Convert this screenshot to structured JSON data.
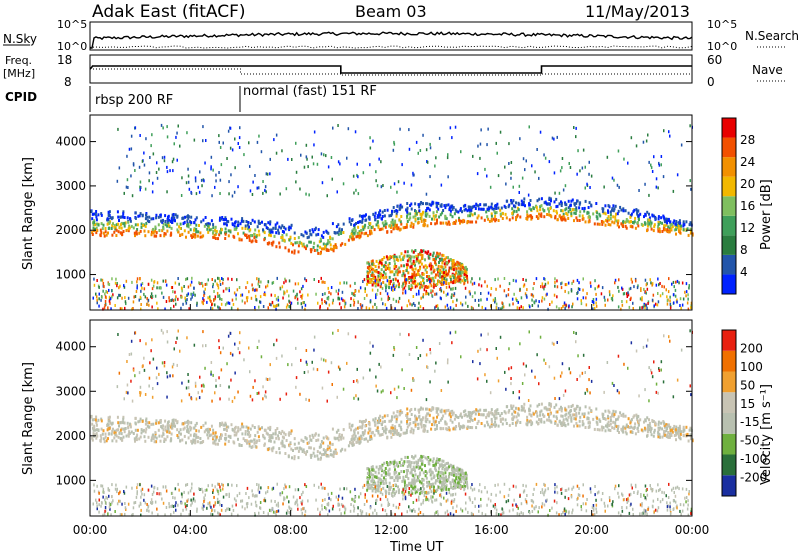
{
  "header": {
    "title": "Adak East (fitACF)",
    "beam": "Beam 03",
    "date": "11/May/2013"
  },
  "top_panels": {
    "nsky_label": "N.Sky",
    "nsearch_label": "N.Search",
    "freq_label": "Freq.",
    "freq_unit": "[MHz]",
    "nave_label": "Nave",
    "cpid_label": "CPID",
    "nsky_ticks": [
      "10^5",
      "10^0"
    ],
    "nsearch_ticks": [
      "10^5",
      "10^0"
    ],
    "freq_ticks": [
      "18",
      "8"
    ],
    "nave_ticks": [
      "60",
      "0"
    ],
    "modes": [
      {
        "label": "rbsp 200 RF",
        "start_h": 0,
        "end_h": 6
      },
      {
        "label": "normal (fast) 151 RF",
        "start_h": 6,
        "end_h": 24
      }
    ]
  },
  "colors": {
    "power": [
      "#0022ff",
      "#2255aa",
      "#2a7d3f",
      "#3f9f5a",
      "#7fbf5f",
      "#f2b800",
      "#f29000",
      "#f25000",
      "#e80000"
    ],
    "velocity": [
      "#1a2fa0",
      "#2a6f3a",
      "#6fb03f",
      "#b8c0b0",
      "#c8c4b4",
      "#f0a030",
      "#f07000",
      "#e82010"
    ]
  },
  "chart_data": [
    {
      "type": "heatmap",
      "panel": "power",
      "x_unit": "hours UT",
      "xlim": [
        0,
        24
      ],
      "ylabel": "Slant Range [km]",
      "ylim": [
        200,
        4600
      ],
      "yticks": [
        "4000",
        "3000",
        "2000",
        "1000"
      ],
      "xticks": [
        "00:00",
        "04:00",
        "08:00",
        "12:00",
        "16:00",
        "20:00",
        "00:00"
      ],
      "colorbar_label": "Power [dB]",
      "colorbar_ticks": [
        "28",
        "24",
        "20",
        "16",
        "12",
        "8",
        "4"
      ],
      "bands": [
        {
          "x": [
            0,
            3,
            6,
            9,
            11,
            13,
            15,
            18,
            21,
            24
          ],
          "y_low": [
            1900,
            1900,
            1800,
            1400,
            1900,
            2100,
            2200,
            2300,
            2100,
            1900
          ],
          "y_high": [
            2500,
            2400,
            2300,
            2100,
            2400,
            2700,
            2600,
            2800,
            2600,
            2200
          ],
          "level": 16
        },
        {
          "x": [
            11,
            12,
            13,
            14,
            15
          ],
          "y_low": [
            800,
            700,
            700,
            800,
            900
          ],
          "y_high": [
            1300,
            1500,
            1600,
            1500,
            1200
          ],
          "level": 20
        }
      ]
    },
    {
      "type": "heatmap",
      "panel": "velocity",
      "x_unit": "hours UT",
      "xlim": [
        0,
        24
      ],
      "ylabel": "Slant Range [km]",
      "ylim": [
        200,
        4600
      ],
      "yticks": [
        "4000",
        "3000",
        "2000",
        "1000"
      ],
      "xticks": [
        "00:00",
        "04:00",
        "08:00",
        "12:00",
        "16:00",
        "20:00",
        "00:00"
      ],
      "xlabel": "Time UT",
      "colorbar_label": "Velocity [m s⁻¹]",
      "colorbar_ticks": [
        "200",
        "100",
        "50",
        "15",
        "-15",
        "-50",
        "-100",
        "-200"
      ]
    }
  ]
}
